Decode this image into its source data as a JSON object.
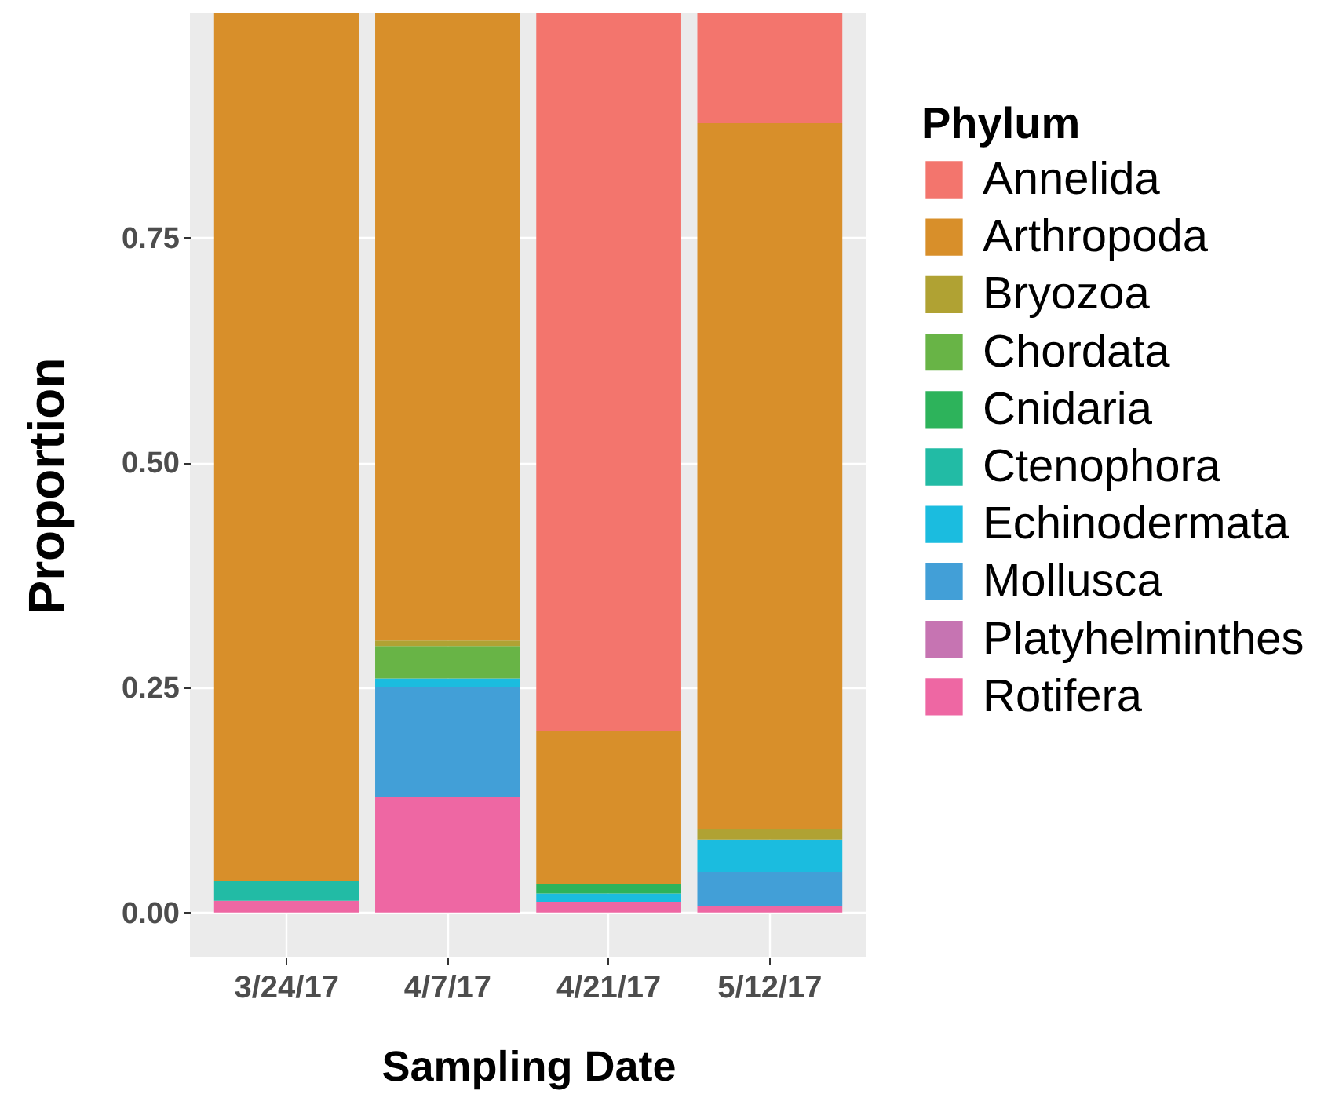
{
  "chart_data": {
    "type": "bar",
    "stacked": true,
    "xlabel": "Sampling Date",
    "ylabel": "Proportion",
    "legend_title": "Phylum",
    "legend": "right",
    "grid": true,
    "categories": [
      "3/24/17",
      "4/7/17",
      "4/21/17",
      "5/12/17"
    ],
    "series": [
      {
        "name": "Rotifera",
        "color": "#ee67a3",
        "values": [
          0.013,
          0.128,
          0.012,
          0.007
        ]
      },
      {
        "name": "Platyhelminthes",
        "color": "#c674b2",
        "values": [
          null,
          null,
          null,
          null
        ]
      },
      {
        "name": "Mollusca",
        "color": "#429fd7",
        "values": [
          null,
          0.122,
          null,
          0.038
        ]
      },
      {
        "name": "Echinodermata",
        "color": "#1bbcdf",
        "values": [
          null,
          0.01,
          0.009,
          0.036
        ]
      },
      {
        "name": "Ctenophora",
        "color": "#22bba5",
        "values": [
          0.022,
          null,
          null,
          null
        ]
      },
      {
        "name": "Cnidaria",
        "color": "#2db35b",
        "values": [
          null,
          null,
          0.011,
          null
        ]
      },
      {
        "name": "Chordata",
        "color": "#68b446",
        "values": [
          null,
          0.036,
          null,
          null
        ]
      },
      {
        "name": "Bryozoa",
        "color": "#b0a233",
        "values": [
          null,
          0.006,
          null,
          0.012
        ]
      },
      {
        "name": "Arthropoda",
        "color": "#d88f2a",
        "values": [
          0.965,
          0.698,
          0.17,
          0.784
        ]
      },
      {
        "name": "Annelida",
        "color": "#f3756d",
        "values": [
          null,
          null,
          0.798,
          0.123
        ]
      }
    ],
    "ylim": [
      -0.05,
      1.0
    ],
    "yticks": [
      {
        "value": 0,
        "label": "0.00"
      },
      0.25,
      {
        "value": 0.5,
        "label": "0.50"
      },
      0.75
    ]
  }
}
